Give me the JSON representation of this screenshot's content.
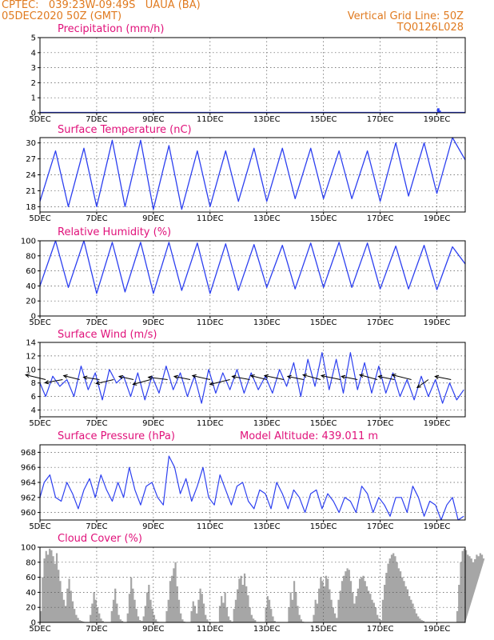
{
  "header": {
    "line1": "CPTEC:   039:23W-09:49S   UAUA (BA)",
    "line2": "05DEC2020 50Z (GMT)",
    "grid_note": "Vertical Grid Line: 50Z",
    "code": "TQ0126L028"
  },
  "colors": {
    "line": "#2c3ff0",
    "title": "#e0117a",
    "header": "#e07a1f",
    "cloud": "#a6a6a6",
    "wind_arrow": "#000000"
  },
  "x_axis": {
    "start_day": 5,
    "end_day": 20,
    "tick_labels": [
      "5DEC",
      "7DEC",
      "9DEC",
      "11DEC",
      "13DEC",
      "15DEC",
      "17DEC",
      "19DEC"
    ],
    "tick_days": [
      5,
      7,
      9,
      11,
      13,
      15,
      17,
      19
    ]
  },
  "chart_data": [
    {
      "type": "bar",
      "title": "Precipitation (mm/h)",
      "ylim": [
        0,
        5
      ],
      "yticks": [
        0,
        1,
        2,
        3,
        4,
        5
      ],
      "x_day": [
        19.0,
        19.05,
        19.1,
        19.15
      ],
      "values": [
        0.05,
        0.3,
        0.15,
        0.05
      ]
    },
    {
      "type": "line",
      "title": "Surface Temperature (nC)",
      "ylim": [
        17,
        31
      ],
      "yticks": [
        18,
        21,
        24,
        27,
        30
      ],
      "daily_max": [
        28.5,
        29.0,
        30.5,
        30.5,
        29.5,
        28.5,
        28.5,
        29.0,
        29.0,
        29.0,
        28.5,
        28.5,
        30.0,
        30.0,
        31.0
      ],
      "daily_min": [
        19.0,
        18.0,
        18.0,
        18.0,
        17.5,
        17.5,
        18.0,
        19.0,
        19.0,
        19.5,
        19.5,
        19.5,
        19.0,
        20.0,
        20.5
      ]
    },
    {
      "type": "line",
      "title": "Relative Humidity (%)",
      "ylim": [
        0,
        100
      ],
      "yticks": [
        0,
        20,
        40,
        60,
        80,
        100
      ],
      "daily_max": [
        100,
        100,
        98,
        98,
        98,
        97,
        96,
        95,
        94,
        97,
        98,
        97,
        93,
        94,
        92
      ],
      "daily_min": [
        40,
        38,
        30,
        32,
        30,
        34,
        30,
        34,
        38,
        36,
        38,
        38,
        36,
        36,
        35
      ]
    },
    {
      "type": "line",
      "title": "Surface Wind (m/s)",
      "ylim": [
        3,
        14
      ],
      "yticks": [
        4,
        6,
        8,
        10,
        12,
        14
      ],
      "series": [
        {
          "x": [
            5.0,
            5.2,
            5.45,
            5.7,
            5.95,
            6.2,
            6.45,
            6.7,
            6.95,
            7.2,
            7.45,
            7.7,
            7.95,
            8.2,
            8.45,
            8.7,
            8.95,
            9.2,
            9.45,
            9.7,
            9.95,
            10.2,
            10.45,
            10.7,
            10.95,
            11.2,
            11.45,
            11.7,
            11.95,
            12.2,
            12.45,
            12.7,
            12.95,
            13.2,
            13.45,
            13.7,
            13.95,
            14.2,
            14.45,
            14.7,
            14.95,
            15.2,
            15.45,
            15.7,
            15.95,
            16.2,
            16.45,
            16.7,
            16.95,
            17.2,
            17.45,
            17.7,
            17.95,
            18.2,
            18.45,
            18.7,
            18.95,
            19.2,
            19.45,
            19.7,
            19.95
          ],
          "y": [
            8.0,
            6.0,
            9.0,
            7.5,
            8.5,
            6.0,
            10.5,
            7.0,
            9.5,
            5.5,
            10.0,
            8.0,
            9.0,
            6.0,
            9.5,
            5.5,
            9.0,
            6.5,
            10.5,
            7.0,
            9.5,
            6.0,
            9.0,
            5.0,
            10.0,
            6.5,
            9.5,
            7.0,
            10.0,
            6.5,
            9.5,
            7.0,
            9.0,
            6.5,
            10.0,
            7.5,
            11.0,
            6.0,
            11.5,
            7.5,
            12.5,
            7.0,
            11.5,
            6.5,
            12.5,
            7.0,
            11.0,
            6.5,
            10.5,
            6.5,
            9.5,
            6.0,
            8.5,
            5.5,
            9.0,
            6.0,
            8.5,
            5.0,
            8.0,
            5.5,
            7.0
          ]
        }
      ],
      "wind_arrows": [
        {
          "day": 5.2,
          "dx": -25,
          "dy": -6
        },
        {
          "day": 5.8,
          "dx": -22,
          "dy": 4
        },
        {
          "day": 6.4,
          "dx": -20,
          "dy": -5
        },
        {
          "day": 7.1,
          "dx": -20,
          "dy": -3
        },
        {
          "day": 7.6,
          "dx": -22,
          "dy": 5
        },
        {
          "day": 8.3,
          "dx": -18,
          "dy": -4
        },
        {
          "day": 8.9,
          "dx": -22,
          "dy": 6
        },
        {
          "day": 9.5,
          "dx": -24,
          "dy": -3
        },
        {
          "day": 10.3,
          "dx": -20,
          "dy": -4
        },
        {
          "day": 11.0,
          "dx": -22,
          "dy": -5
        },
        {
          "day": 11.7,
          "dx": -25,
          "dy": 6
        },
        {
          "day": 12.4,
          "dx": -22,
          "dy": -4
        },
        {
          "day": 13.0,
          "dx": -20,
          "dy": -5
        },
        {
          "day": 13.6,
          "dx": -24,
          "dy": -5
        },
        {
          "day": 14.3,
          "dx": -20,
          "dy": -4
        },
        {
          "day": 14.9,
          "dx": -22,
          "dy": -6
        },
        {
          "day": 15.6,
          "dx": -24,
          "dy": -5
        },
        {
          "day": 16.2,
          "dx": -20,
          "dy": -4
        },
        {
          "day": 16.9,
          "dx": -22,
          "dy": -6
        },
        {
          "day": 17.5,
          "dx": -20,
          "dy": -4
        },
        {
          "day": 18.1,
          "dx": -24,
          "dy": -6
        },
        {
          "day": 18.7,
          "dx": -14,
          "dy": 10
        },
        {
          "day": 19.5,
          "dx": -20,
          "dy": -4
        }
      ]
    },
    {
      "type": "line",
      "title": "Surface Pressure (hPa)",
      "annotation": "Model Altitude: 439.011 m",
      "ylim": [
        959,
        969
      ],
      "yticks": [
        960,
        962,
        964,
        966,
        968
      ],
      "series": [
        {
          "x": [
            5.0,
            5.15,
            5.35,
            5.55,
            5.75,
            5.95,
            6.15,
            6.35,
            6.55,
            6.75,
            6.95,
            7.15,
            7.35,
            7.55,
            7.75,
            7.95,
            8.15,
            8.35,
            8.55,
            8.75,
            8.95,
            9.15,
            9.35,
            9.55,
            9.75,
            9.95,
            10.15,
            10.35,
            10.55,
            10.75,
            10.95,
            11.15,
            11.35,
            11.55,
            11.75,
            11.95,
            12.15,
            12.35,
            12.55,
            12.75,
            12.95,
            13.15,
            13.35,
            13.55,
            13.75,
            13.95,
            14.15,
            14.35,
            14.55,
            14.75,
            14.95,
            15.15,
            15.35,
            15.55,
            15.75,
            15.95,
            16.15,
            16.35,
            16.55,
            16.75,
            16.95,
            17.15,
            17.35,
            17.55,
            17.75,
            17.95,
            18.15,
            18.35,
            18.55,
            18.75,
            18.95,
            19.15,
            19.35,
            19.55,
            19.75,
            19.95
          ],
          "y": [
            962.0,
            964.0,
            965.0,
            962.0,
            961.5,
            964.0,
            962.5,
            960.5,
            963.0,
            964.5,
            962.0,
            965.0,
            963.0,
            961.5,
            964.0,
            962.0,
            966.0,
            963.0,
            961.0,
            963.5,
            964.0,
            962.0,
            961.0,
            967.5,
            966.0,
            962.5,
            964.5,
            961.5,
            963.5,
            966.0,
            962.0,
            961.0,
            965.0,
            963.0,
            961.0,
            963.5,
            964.0,
            961.5,
            960.5,
            963.0,
            962.5,
            960.5,
            964.0,
            962.5,
            960.5,
            963.0,
            962.0,
            960.0,
            962.5,
            963.0,
            960.5,
            962.5,
            961.5,
            960.0,
            962.0,
            961.5,
            960.0,
            963.5,
            962.5,
            960.0,
            962.0,
            961.0,
            959.5,
            962.0,
            962.0,
            960.0,
            963.5,
            962.0,
            959.5,
            961.5,
            961.0,
            959.0,
            961.0,
            962.0,
            959.0,
            959.5
          ]
        }
      ]
    },
    {
      "type": "area",
      "title": "Cloud Cover (%)",
      "ylim": [
        0,
        100
      ],
      "yticks": [
        0,
        20,
        40,
        60,
        80,
        100
      ],
      "x_day_start": 5.0,
      "x_day_step": 0.0625,
      "values": [
        15,
        60,
        85,
        95,
        90,
        98,
        96,
        88,
        78,
        92,
        70,
        55,
        40,
        30,
        22,
        45,
        58,
        42,
        28,
        18,
        10,
        6,
        3,
        2,
        1,
        0,
        0,
        0,
        10,
        25,
        40,
        30,
        20,
        12,
        5,
        2,
        0,
        0,
        0,
        0,
        15,
        30,
        45,
        25,
        10,
        4,
        2,
        0,
        0,
        12,
        38,
        60,
        45,
        30,
        18,
        8,
        3,
        2,
        8,
        22,
        40,
        50,
        30,
        18,
        10,
        4,
        1,
        0,
        0,
        0,
        0,
        15,
        30,
        55,
        62,
        72,
        80,
        48,
        30,
        12,
        4,
        1,
        0,
        0,
        0,
        15,
        28,
        22,
        12,
        30,
        45,
        38,
        25,
        10,
        4,
        1,
        0,
        0,
        0,
        0,
        0,
        22,
        35,
        26,
        40,
        20,
        8,
        3,
        1,
        18,
        30,
        44,
        58,
        62,
        50,
        65,
        48,
        36,
        20,
        10,
        5,
        3,
        0,
        0,
        0,
        0,
        0,
        20,
        35,
        30,
        18,
        8,
        2,
        0,
        0,
        0,
        0,
        0,
        0,
        0,
        20,
        40,
        30,
        55,
        40,
        22,
        10,
        4,
        1,
        0,
        0,
        0,
        0,
        0,
        10,
        30,
        25,
        45,
        60,
        55,
        48,
        62,
        58,
        44,
        30,
        20,
        12,
        6,
        30,
        42,
        55,
        62,
        68,
        72,
        70,
        55,
        40,
        25,
        35,
        45,
        58,
        60,
        62,
        55,
        48,
        42,
        38,
        30,
        26,
        20,
        10,
        5,
        3,
        30,
        50,
        66,
        78,
        85,
        90,
        92,
        88,
        80,
        72,
        68,
        60,
        55,
        48,
        44,
        35,
        30,
        25,
        18,
        12,
        8,
        5,
        3,
        2,
        0,
        0,
        0,
        0,
        0,
        0,
        0,
        0,
        0,
        0,
        0,
        0,
        0,
        0,
        0,
        0,
        0,
        0,
        15,
        50,
        80,
        95,
        98,
        96,
        90,
        88,
        85,
        80,
        84,
        90,
        88,
        92,
        90,
        85
      ]
    }
  ]
}
